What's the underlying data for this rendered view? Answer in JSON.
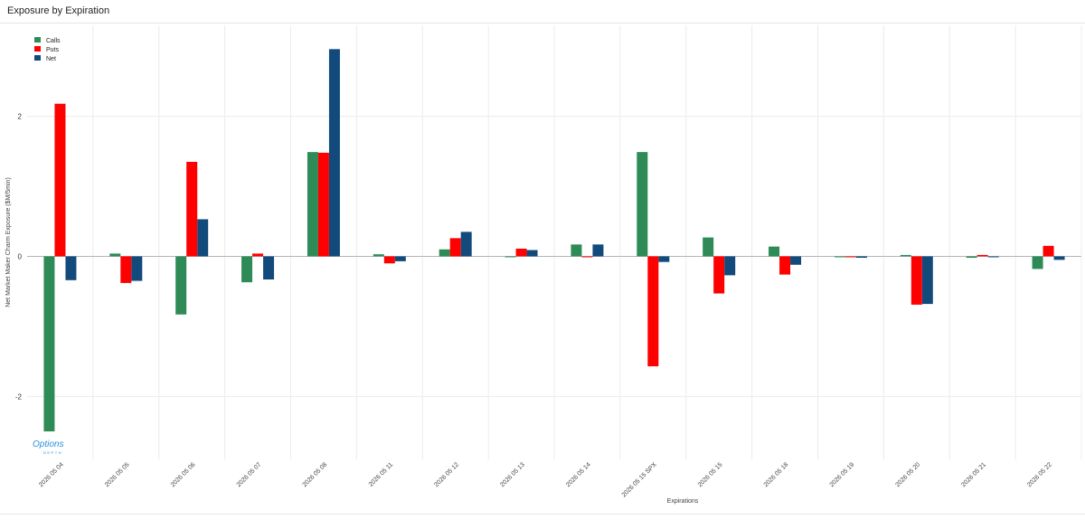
{
  "header": {
    "title": "Exposure by Expiration"
  },
  "logo": {
    "main": "Options",
    "sub": "DEPTH"
  },
  "colors": {
    "calls": "#2e8b57",
    "puts": "#ff0000",
    "net": "#124a7c",
    "grid": "#ececec",
    "zero": "#b5b5b5"
  },
  "chart_data": {
    "type": "bar",
    "title": "",
    "xlabel": "Expirations",
    "ylabel": "Net Market Maker Charm Exposure ($M/5min)",
    "ylim": [
      -2.9,
      3.3
    ],
    "yticks": [
      -2,
      0,
      2
    ],
    "legend_position": "top-left",
    "categories": [
      "2026 05 04",
      "2026 05 05",
      "2026 05 06",
      "2026 05 07",
      "2026 05 08",
      "2026 05 11",
      "2026 05 12",
      "2026 05 13",
      "2026 05 14",
      "2026 05 15 SPX",
      "2026 05 15",
      "2026 05 18",
      "2026 05 19",
      "2026 05 20",
      "2026 05 21",
      "2026 05 22"
    ],
    "series": [
      {
        "name": "Calls",
        "color": "#2e8b57",
        "values": [
          -2.5,
          0.04,
          -0.83,
          -0.37,
          1.49,
          0.03,
          0.1,
          -0.01,
          0.17,
          1.49,
          0.27,
          0.14,
          -0.01,
          0.02,
          -0.02,
          -0.18
        ]
      },
      {
        "name": "Puts",
        "color": "#ff0000",
        "values": [
          2.18,
          -0.38,
          1.35,
          0.04,
          1.48,
          -0.1,
          0.26,
          0.11,
          0.0,
          -1.57,
          -0.53,
          -0.26,
          -0.01,
          -0.69,
          0.02,
          0.15
        ]
      },
      {
        "name": "Net",
        "color": "#124a7c",
        "values": [
          -0.34,
          -0.35,
          0.53,
          -0.33,
          2.96,
          -0.07,
          0.35,
          0.09,
          0.17,
          -0.08,
          -0.27,
          -0.12,
          -0.02,
          -0.68,
          -0.01,
          -0.05
        ]
      }
    ]
  }
}
